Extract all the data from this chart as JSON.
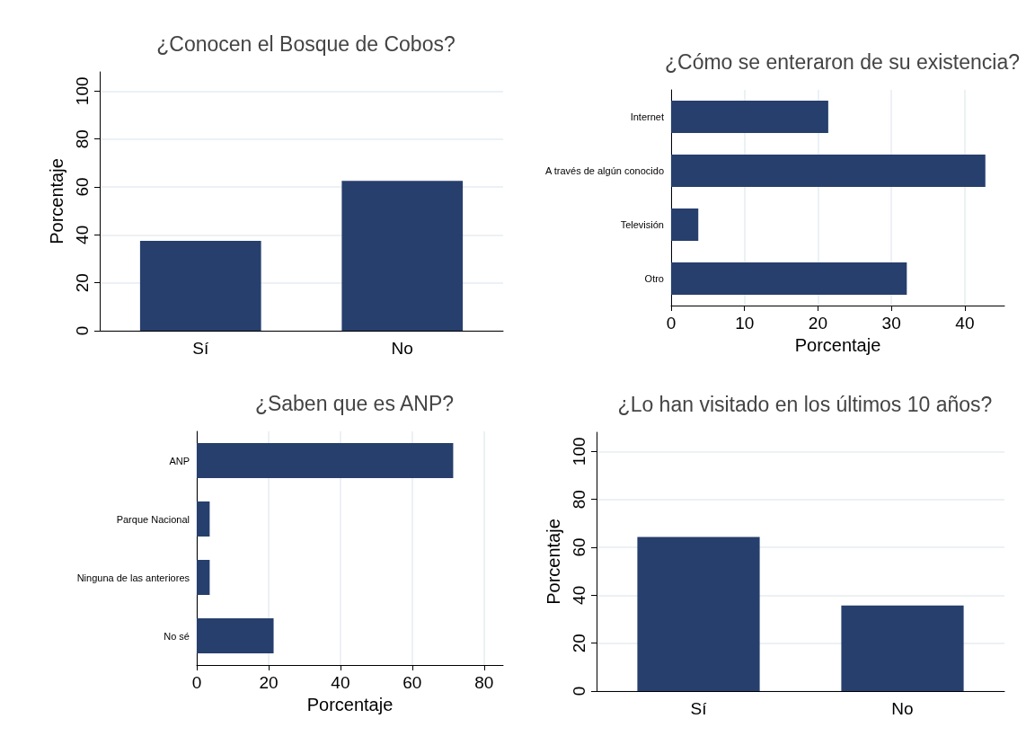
{
  "chart_data": [
    {
      "type": "bar",
      "title": "¿Conocen el Bosque de Cobos?",
      "ylabel": "Porcentaje",
      "categories": [
        "Sí",
        "No"
      ],
      "values": [
        37.5,
        62.5
      ],
      "color": "#273f6d",
      "ylim": [
        0,
        108
      ],
      "yticks": [
        0,
        20,
        40,
        60,
        80,
        100
      ],
      "grid": "y"
    },
    {
      "type": "bar",
      "orientation": "horizontal",
      "title": "¿Cómo se enteraron de su existencia?",
      "xlabel": "Porcentaje",
      "categories": [
        "Internet",
        "A través de algún conocido",
        "Televisión",
        "Otro"
      ],
      "values": [
        21.4,
        42.8,
        3.7,
        32.1
      ],
      "color": "#273f6d",
      "xlim": [
        0,
        45.4
      ],
      "xticks": [
        0,
        10,
        20,
        30,
        40
      ],
      "grid": "x"
    },
    {
      "type": "bar",
      "orientation": "horizontal",
      "title": "¿Saben que es ANP?",
      "xlabel": "Porcentaje",
      "categories": [
        "ANP",
        "Parque Nacional",
        "Ninguna de las anteriores",
        "No sé"
      ],
      "values": [
        71.4,
        3.6,
        3.6,
        21.4
      ],
      "color": "#273f6d",
      "xlim": [
        0,
        85.3
      ],
      "xticks": [
        0,
        20,
        40,
        60,
        80
      ],
      "grid": "x"
    },
    {
      "type": "bar",
      "title": "¿Lo han visitado en los últimos 10 años?",
      "ylabel": "Porcentaje",
      "categories": [
        "Sí",
        "No"
      ],
      "values": [
        64.3,
        35.7
      ],
      "color": "#273f6d",
      "ylim": [
        0,
        108
      ],
      "yticks": [
        0,
        20,
        40,
        60,
        80,
        100
      ],
      "grid": "y"
    }
  ]
}
